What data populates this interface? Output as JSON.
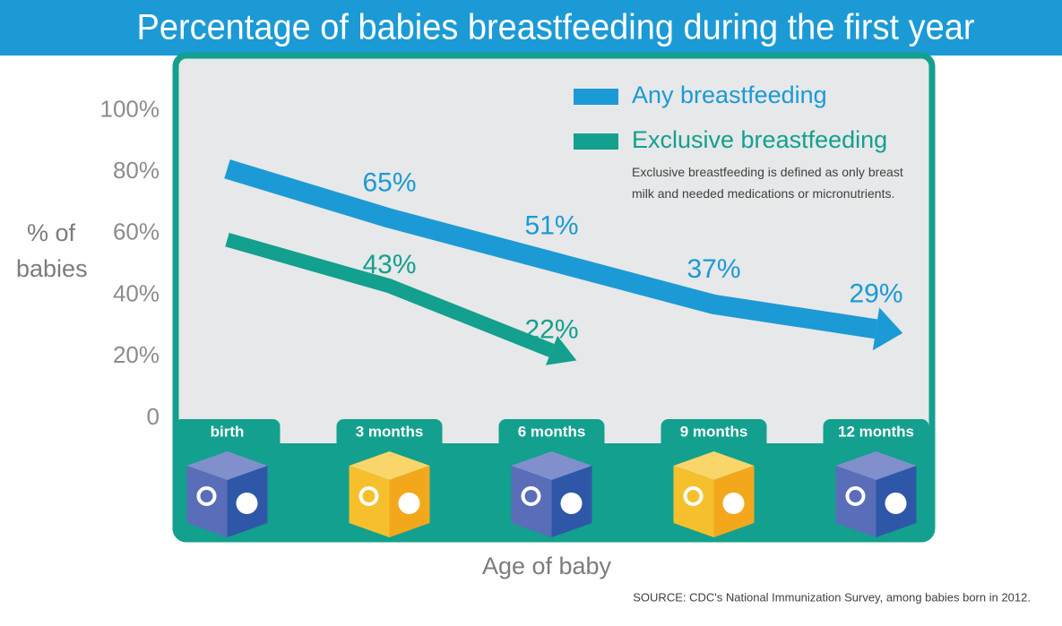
{
  "chart_data": {
    "type": "line",
    "title": "Percentage of babies breastfeeding during the first year",
    "y_label": "% of babies",
    "x_label": "Age of baby",
    "note": "Exclusive breastfeeding is defined as only breast milk and needed medications or micronutrients.",
    "source": "SOURCE: CDC's National Immunization Survey, among babies born in 2012.",
    "categories": [
      "birth",
      "3 months",
      "6 months",
      "9 months",
      "12 months"
    ],
    "series": [
      {
        "name": "Any breastfeeding",
        "color": "#1b9ad6",
        "values": [
          81,
          65,
          51,
          37,
          29
        ],
        "value_labels": [
          null,
          "65%",
          "51%",
          "37%",
          "29%"
        ]
      },
      {
        "name": "Exclusive breastfeeding",
        "color": "#13a08e",
        "values": [
          58,
          43,
          22,
          null,
          null
        ],
        "value_labels": [
          null,
          "43%",
          "22%",
          null,
          null
        ]
      }
    ],
    "ylim": [
      0,
      117
    ],
    "yticks": [
      0,
      {
        "value": 20,
        "label": "20%"
      },
      {
        "value": 40,
        "label": "40%"
      },
      {
        "value": 60,
        "label": "60%"
      },
      {
        "value": 80,
        "label": "80%"
      },
      {
        "value": 100,
        "label": "100%"
      }
    ],
    "grid": false
  }
}
